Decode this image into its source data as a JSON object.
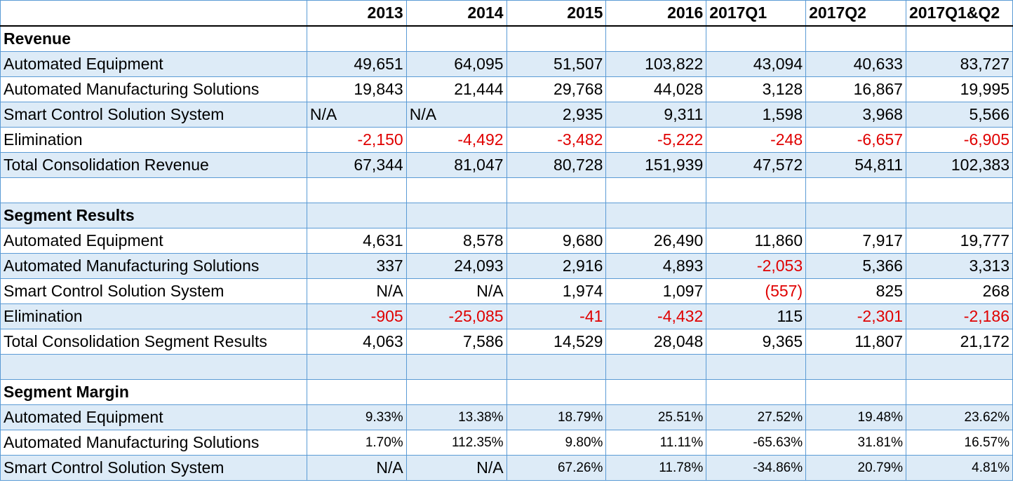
{
  "header": {
    "label": "",
    "columns": [
      {
        "text": "2013",
        "align": "right"
      },
      {
        "text": "2014",
        "align": "right"
      },
      {
        "text": "2015",
        "align": "right"
      },
      {
        "text": "2016",
        "align": "right"
      },
      {
        "text": "2017Q1",
        "align": "left"
      },
      {
        "text": "2017Q2",
        "align": "left"
      },
      {
        "text": "2017Q1&Q2",
        "align": "left"
      }
    ]
  },
  "rows": [
    {
      "type": "section",
      "label": "Revenue",
      "shade": false,
      "cells": []
    },
    {
      "type": "data",
      "label": "Automated Equipment",
      "shade": true,
      "cells": [
        {
          "v": "49,651"
        },
        {
          "v": "64,095"
        },
        {
          "v": "51,507"
        },
        {
          "v": "103,822"
        },
        {
          "v": "43,094"
        },
        {
          "v": "40,633"
        },
        {
          "v": "83,727"
        }
      ]
    },
    {
      "type": "data",
      "label": "Automated Manufacturing Solutions",
      "shade": false,
      "cells": [
        {
          "v": "19,843"
        },
        {
          "v": "21,444"
        },
        {
          "v": "29,768"
        },
        {
          "v": "44,028"
        },
        {
          "v": "3,128"
        },
        {
          "v": "16,867"
        },
        {
          "v": "19,995"
        }
      ]
    },
    {
      "type": "data",
      "label": "Smart Control Solution System",
      "shade": true,
      "cells": [
        {
          "v": "N/A",
          "align": "left"
        },
        {
          "v": "N/A",
          "align": "left"
        },
        {
          "v": "2,935"
        },
        {
          "v": "9,311"
        },
        {
          "v": "1,598"
        },
        {
          "v": "3,968"
        },
        {
          "v": "5,566"
        }
      ]
    },
    {
      "type": "data",
      "label": "Elimination",
      "shade": false,
      "cells": [
        {
          "v": "-2,150",
          "neg": true
        },
        {
          "v": "-4,492",
          "neg": true
        },
        {
          "v": "-3,482",
          "neg": true
        },
        {
          "v": "-5,222",
          "neg": true
        },
        {
          "v": "-248",
          "neg": true
        },
        {
          "v": "-6,657",
          "neg": true
        },
        {
          "v": "-6,905",
          "neg": true
        }
      ]
    },
    {
      "type": "data",
      "label": "Total Consolidation Revenue",
      "shade": true,
      "cells": [
        {
          "v": "67,344"
        },
        {
          "v": "81,047"
        },
        {
          "v": "80,728"
        },
        {
          "v": "151,939"
        },
        {
          "v": "47,572"
        },
        {
          "v": "54,811"
        },
        {
          "v": "102,383"
        }
      ]
    },
    {
      "type": "blank",
      "label": "",
      "shade": false,
      "cells": []
    },
    {
      "type": "section",
      "label": "Segment Results",
      "shade": true,
      "cells": []
    },
    {
      "type": "data",
      "label": "Automated Equipment",
      "shade": false,
      "cells": [
        {
          "v": "4,631"
        },
        {
          "v": "8,578"
        },
        {
          "v": "9,680"
        },
        {
          "v": "26,490"
        },
        {
          "v": "11,860"
        },
        {
          "v": "7,917"
        },
        {
          "v": "19,777"
        }
      ]
    },
    {
      "type": "data",
      "label": "Automated Manufacturing Solutions",
      "shade": true,
      "cells": [
        {
          "v": "337"
        },
        {
          "v": "24,093"
        },
        {
          "v": "2,916"
        },
        {
          "v": "4,893"
        },
        {
          "v": "-2,053",
          "neg": true
        },
        {
          "v": "5,366"
        },
        {
          "v": "3,313"
        }
      ]
    },
    {
      "type": "data",
      "label": "Smart Control Solution System",
      "shade": false,
      "cells": [
        {
          "v": "N/A"
        },
        {
          "v": "N/A"
        },
        {
          "v": "1,974"
        },
        {
          "v": "1,097"
        },
        {
          "v": "(557)",
          "neg": true
        },
        {
          "v": "825"
        },
        {
          "v": "268"
        }
      ]
    },
    {
      "type": "data",
      "label": "Elimination",
      "shade": true,
      "cells": [
        {
          "v": "-905",
          "neg": true
        },
        {
          "v": "-25,085",
          "neg": true
        },
        {
          "v": "-41",
          "neg": true
        },
        {
          "v": "-4,432",
          "neg": true
        },
        {
          "v": "115"
        },
        {
          "v": "-2,301",
          "neg": true
        },
        {
          "v": "-2,186",
          "neg": true
        }
      ]
    },
    {
      "type": "data",
      "label": "Total Consolidation Segment Results",
      "shade": false,
      "cells": [
        {
          "v": "4,063"
        },
        {
          "v": "7,586"
        },
        {
          "v": "14,529"
        },
        {
          "v": "28,048"
        },
        {
          "v": "9,365"
        },
        {
          "v": "11,807"
        },
        {
          "v": "21,172"
        }
      ]
    },
    {
      "type": "blank",
      "label": "",
      "shade": true,
      "cells": []
    },
    {
      "type": "section",
      "label": "Segment  Margin",
      "shade": false,
      "cells": []
    },
    {
      "type": "data",
      "label": "Automated Equipment",
      "shade": true,
      "pct": true,
      "cells": [
        {
          "v": "9.33%"
        },
        {
          "v": "13.38%"
        },
        {
          "v": "18.79%"
        },
        {
          "v": "25.51%"
        },
        {
          "v": "27.52%"
        },
        {
          "v": "19.48%"
        },
        {
          "v": "23.62%"
        }
      ]
    },
    {
      "type": "data",
      "label": "Automated Manufacturing Solutions",
      "shade": false,
      "pct": true,
      "cells": [
        {
          "v": "1.70%"
        },
        {
          "v": "112.35%"
        },
        {
          "v": "9.80%"
        },
        {
          "v": "11.11%"
        },
        {
          "v": "-65.63%"
        },
        {
          "v": "31.81%"
        },
        {
          "v": "16.57%"
        }
      ]
    },
    {
      "type": "data",
      "label": "Smart Control Solution System",
      "shade": true,
      "pct": true,
      "cells": [
        {
          "v": "N/A",
          "big": true
        },
        {
          "v": "N/A",
          "big": true
        },
        {
          "v": "67.26%"
        },
        {
          "v": "11.78%"
        },
        {
          "v": "-34.86%"
        },
        {
          "v": "20.79%"
        },
        {
          "v": "4.81%"
        }
      ]
    }
  ]
}
